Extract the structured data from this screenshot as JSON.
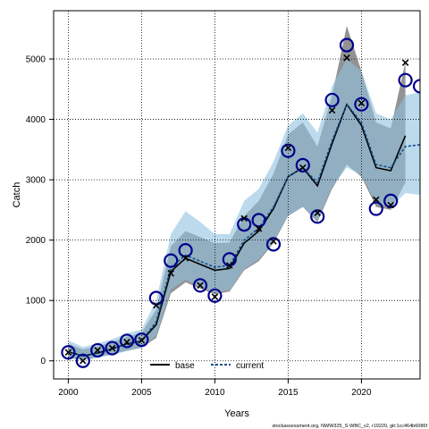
{
  "chart_data": {
    "type": "line",
    "title": "",
    "xlabel": "Years",
    "ylabel": "Catch",
    "xlim": [
      1999,
      2024
    ],
    "ylim": [
      -300,
      5800
    ],
    "xticks": [
      2000,
      2005,
      2010,
      2015,
      2020
    ],
    "yticks": [
      0,
      1000,
      2000,
      3000,
      4000,
      5000
    ],
    "grid": true,
    "legend_position": "bottom-center",
    "footnote": "stockassessment.org, NWW325_S-WBC_v2, r19220, git:1cc464b6086f",
    "series": [
      {
        "name": "base",
        "color": "#000000",
        "band_color": "#808080",
        "x": [
          2000,
          2001,
          2002,
          2003,
          2004,
          2005,
          2006,
          2007,
          2008,
          2009,
          2010,
          2011,
          2012,
          2013,
          2014,
          2015,
          2016,
          2017,
          2018,
          2019,
          2020,
          2021,
          2022,
          2023
        ],
        "fit": [
          150,
          80,
          130,
          200,
          280,
          330,
          600,
          1480,
          1700,
          1600,
          1500,
          1530,
          1950,
          2150,
          2520,
          3050,
          3200,
          2900,
          3600,
          4250,
          3900,
          3200,
          3150,
          3730
        ],
        "lower": [
          50,
          20,
          60,
          110,
          170,
          220,
          380,
          1120,
          1300,
          1200,
          1100,
          1150,
          1500,
          1650,
          1950,
          2400,
          2550,
          2300,
          2850,
          3250,
          3050,
          2550,
          2500,
          2950
        ],
        "upper": [
          280,
          190,
          240,
          310,
          400,
          460,
          850,
          1900,
          2150,
          2050,
          1950,
          1960,
          2400,
          2650,
          3100,
          3750,
          3950,
          3550,
          4400,
          5550,
          4800,
          3950,
          3850,
          4950
        ],
        "observed": [
          140,
          0,
          175,
          210,
          310,
          340,
          920,
          1450,
          1700,
          1250,
          1060,
          1580,
          2360,
          2190,
          1980,
          3530,
          3200,
          2450,
          4150,
          5020,
          4270,
          2670,
          2580,
          4940
        ]
      },
      {
        "name": "current",
        "color": "#104e8b",
        "band_color": "#8fc1e0",
        "x": [
          2000,
          2001,
          2002,
          2003,
          2004,
          2005,
          2006,
          2007,
          2008,
          2009,
          2010,
          2011,
          2012,
          2013,
          2014,
          2015,
          2016,
          2017,
          2018,
          2019,
          2020,
          2021,
          2022,
          2023,
          2024
        ],
        "fit": [
          150,
          80,
          130,
          200,
          280,
          330,
          650,
          1550,
          1750,
          1650,
          1550,
          1580,
          2000,
          2200,
          2550,
          3050,
          3200,
          2950,
          3650,
          4250,
          3950,
          3250,
          3200,
          3550,
          3580
        ],
        "lower": [
          40,
          10,
          50,
          100,
          160,
          210,
          420,
          1180,
          1340,
          1230,
          1130,
          1170,
          1520,
          1680,
          1970,
          2400,
          2550,
          2330,
          2880,
          3200,
          3080,
          2600,
          2550,
          2780,
          2750
        ],
        "upper": [
          340,
          230,
          290,
          360,
          460,
          520,
          1000,
          2100,
          2480,
          2300,
          2100,
          2100,
          2650,
          2850,
          3300,
          3900,
          4100,
          3780,
          4550,
          5000,
          4800,
          4100,
          4000,
          4400,
          4450
        ],
        "observed": [
          140,
          0,
          175,
          210,
          330,
          350,
          1040,
          1660,
          1830,
          1250,
          1080,
          1680,
          2260,
          2330,
          1930,
          3480,
          3240,
          2390,
          4320,
          5230,
          4250,
          2520,
          2650,
          4650,
          4550
        ]
      }
    ]
  }
}
